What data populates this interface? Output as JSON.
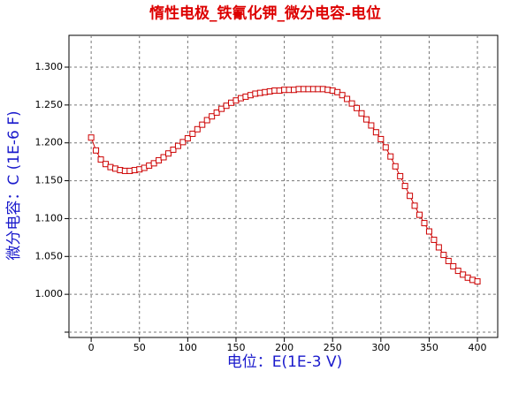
{
  "chart_data": {
    "type": "line",
    "title": "惰性电极_铁氰化钾_微分电容-电位",
    "x_label": "电位：E(1E-3 V)",
    "y_label": "微分电容：C (1E-6 F)",
    "xlim": [
      -23,
      421
    ],
    "ylim": [
      0.943,
      1.342
    ],
    "xticks": [
      0,
      50,
      100,
      150,
      200,
      250,
      300,
      350,
      400
    ],
    "yticks": [
      {
        "value": 0.95,
        "label": null
      },
      {
        "value": 1.0,
        "label": "1.000"
      },
      {
        "value": 1.05,
        "label": "1.050"
      },
      {
        "value": 1.1,
        "label": "1.100"
      },
      {
        "value": 1.15,
        "label": "1.150"
      },
      {
        "value": 1.2,
        "label": "1.200"
      },
      {
        "value": 1.25,
        "label": "1.250"
      },
      {
        "value": 1.3,
        "label": "1.300"
      }
    ],
    "grid": true,
    "series": [
      {
        "color": "#cc0000",
        "x": [
          0,
          5,
          10,
          15,
          20,
          25,
          30,
          35,
          40,
          45,
          50,
          55,
          60,
          65,
          70,
          75,
          80,
          85,
          90,
          95,
          100,
          105,
          110,
          115,
          120,
          125,
          130,
          135,
          140,
          145,
          150,
          155,
          160,
          165,
          170,
          175,
          180,
          185,
          190,
          195,
          200,
          205,
          210,
          215,
          220,
          225,
          230,
          235,
          240,
          245,
          250,
          255,
          260,
          265,
          270,
          275,
          280,
          285,
          290,
          295,
          300,
          305,
          310,
          315,
          320,
          325,
          330,
          335,
          340,
          345,
          350,
          355,
          360,
          365,
          370,
          375,
          380,
          385,
          390,
          395,
          400
        ],
        "values": [
          1.207,
          1.19,
          1.178,
          1.172,
          1.168,
          1.166,
          1.164,
          1.163,
          1.163,
          1.164,
          1.165,
          1.167,
          1.17,
          1.173,
          1.177,
          1.181,
          1.186,
          1.191,
          1.196,
          1.201,
          1.206,
          1.212,
          1.218,
          1.224,
          1.23,
          1.235,
          1.24,
          1.245,
          1.249,
          1.253,
          1.256,
          1.259,
          1.261,
          1.263,
          1.265,
          1.266,
          1.267,
          1.268,
          1.269,
          1.269,
          1.27,
          1.27,
          1.27,
          1.271,
          1.271,
          1.271,
          1.271,
          1.271,
          1.271,
          1.27,
          1.269,
          1.267,
          1.263,
          1.258,
          1.252,
          1.246,
          1.239,
          1.231,
          1.223,
          1.214,
          1.205,
          1.194,
          1.182,
          1.169,
          1.156,
          1.143,
          1.13,
          1.117,
          1.105,
          1.094,
          1.083,
          1.072,
          1.062,
          1.052,
          1.044,
          1.037,
          1.031,
          1.026,
          1.022,
          1.019,
          1.017
        ]
      }
    ]
  }
}
